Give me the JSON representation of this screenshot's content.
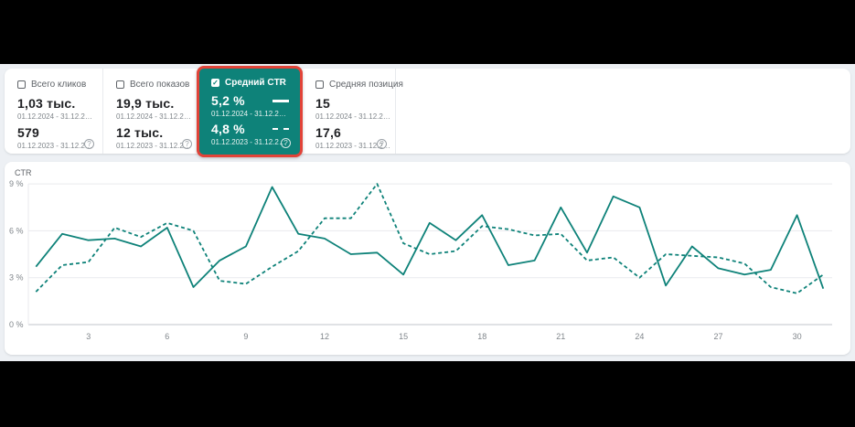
{
  "colors": {
    "accent_teal": "#0e8279",
    "highlight_red": "#e14338",
    "grid_light": "#e9eaee",
    "axis_gray": "#c2c6cb",
    "tick_text": "#80868b"
  },
  "cards": [
    {
      "label": "Всего кликов",
      "checked": false,
      "value_current": "1,03 тыс.",
      "period_current": "01.12.2024 - 31.12.2…",
      "value_previous": "579",
      "period_previous": "01.12.2023 - 31.12.2…",
      "help_glyph": "?"
    },
    {
      "label": "Всего показов",
      "checked": false,
      "value_current": "19,9 тыс.",
      "period_current": "01.12.2024 - 31.12.2…",
      "value_previous": "12 тыс.",
      "period_previous": "01.12.2023 - 31.12.2…",
      "help_glyph": "?"
    },
    {
      "label": "Средний CTR",
      "checked": true,
      "value_current": "5,2 %",
      "period_current": "01.12.2024 - 31.12.2…",
      "value_previous": "4,8 %",
      "period_previous": "01.12.2023 - 31.12.2…",
      "help_glyph": "?"
    },
    {
      "label": "Средняя позиция",
      "checked": false,
      "value_current": "15",
      "period_current": "01.12.2024 - 31.12.2…",
      "value_previous": "17,6",
      "period_previous": "01.12.2023 - 31.12.2…",
      "help_glyph": "?"
    }
  ],
  "chart_data": {
    "type": "line",
    "title": "CTR",
    "ylabel": "CTR",
    "xlabel": "",
    "x": [
      1,
      2,
      3,
      4,
      5,
      6,
      7,
      8,
      9,
      10,
      11,
      12,
      13,
      14,
      15,
      16,
      17,
      18,
      19,
      20,
      21,
      22,
      23,
      24,
      25,
      26,
      27,
      28,
      29,
      30,
      31
    ],
    "xticks": [
      3,
      6,
      9,
      12,
      15,
      18,
      21,
      24,
      27,
      30
    ],
    "yticks": [
      0,
      3,
      6,
      9
    ],
    "ytick_suffix": " %",
    "ylim": [
      0,
      9
    ],
    "grid": true,
    "legend_position": "none",
    "series": [
      {
        "name": "01.12.2024 - 31.12.2024",
        "style": "solid",
        "color": "#0e8279",
        "values": [
          3.7,
          5.8,
          5.4,
          5.5,
          5.0,
          6.2,
          2.4,
          4.1,
          5.0,
          8.8,
          5.8,
          5.5,
          4.5,
          4.6,
          3.2,
          6.5,
          5.4,
          7.0,
          3.8,
          4.1,
          7.5,
          4.6,
          8.2,
          7.5,
          2.5,
          5.0,
          3.6,
          3.2,
          3.5,
          7.0,
          2.3
        ]
      },
      {
        "name": "01.12.2023 - 31.12.2023",
        "style": "dashed",
        "color": "#0e8279",
        "values": [
          2.1,
          3.8,
          4.0,
          6.2,
          5.6,
          6.5,
          6.0,
          2.8,
          2.6,
          3.7,
          4.7,
          6.8,
          6.8,
          9.0,
          5.2,
          4.5,
          4.7,
          6.3,
          6.1,
          5.7,
          5.8,
          4.1,
          4.3,
          3.0,
          4.5,
          4.4,
          4.3,
          3.9,
          2.4,
          2.0,
          3.2
        ]
      }
    ]
  }
}
